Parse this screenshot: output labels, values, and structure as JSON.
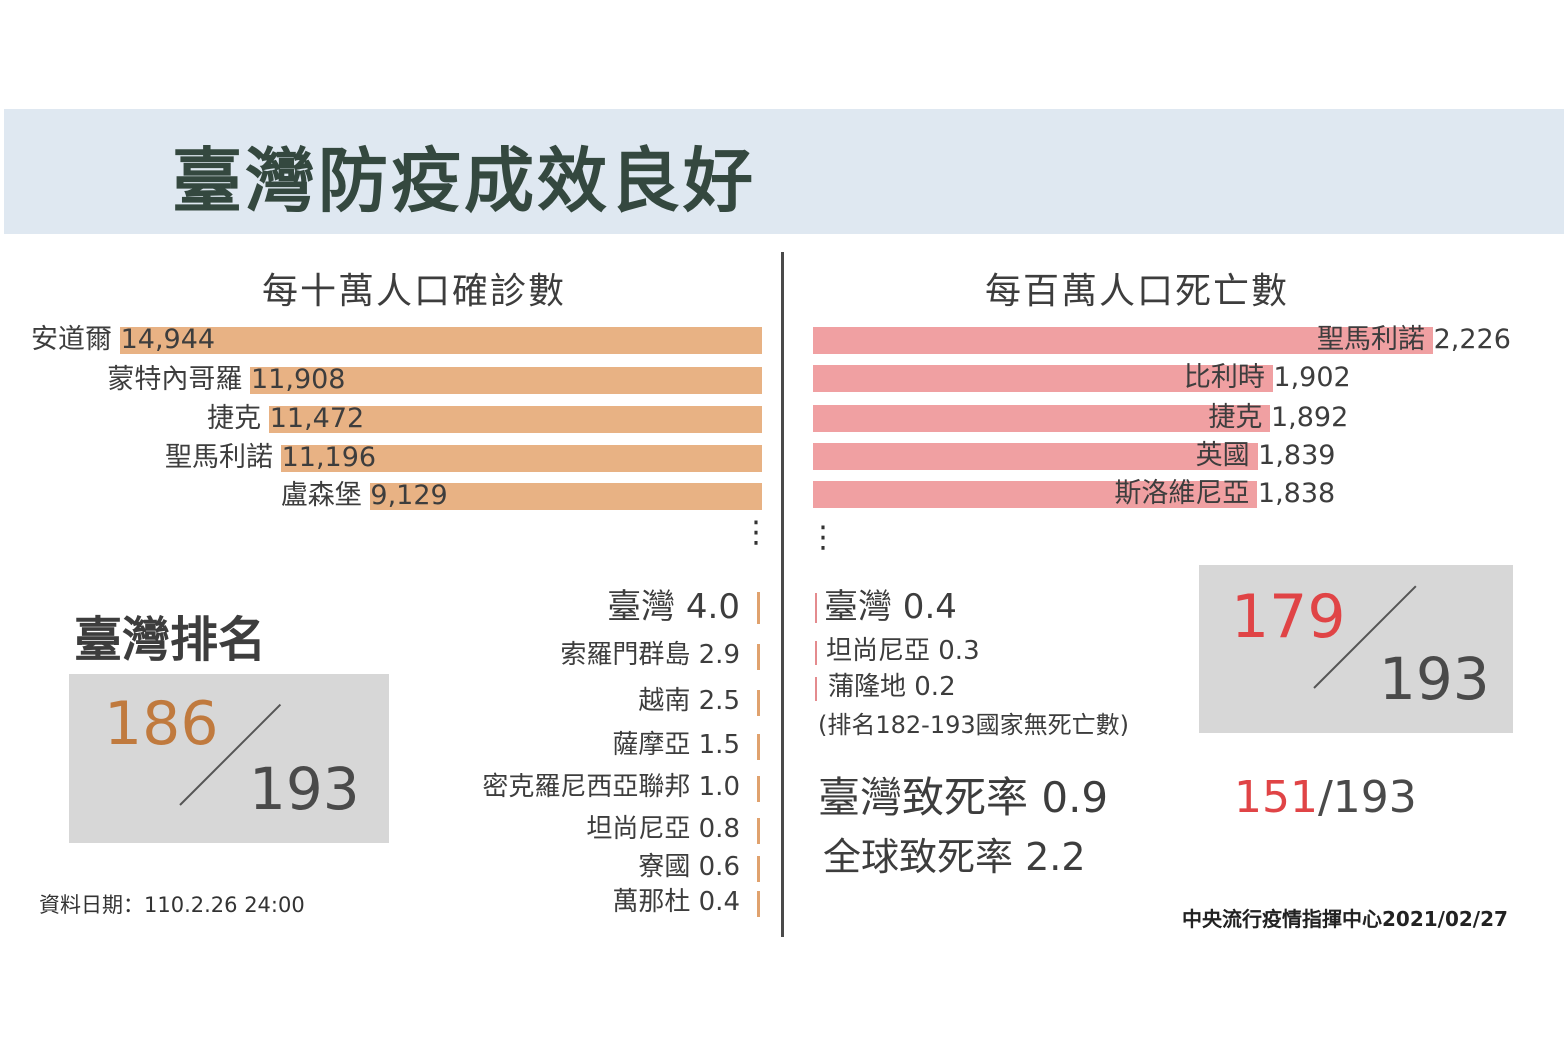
{
  "title": "臺灣防疫成效良好",
  "cases_chart": {
    "title": "每十萬人口確診數",
    "top": [
      {
        "country": "安道爾",
        "value": 14944,
        "label": "14,944"
      },
      {
        "country": "蒙特內哥羅",
        "value": 11908,
        "label": "11,908"
      },
      {
        "country": "捷克",
        "value": 11472,
        "label": "11,472"
      },
      {
        "country": "聖馬利諾",
        "value": 11196,
        "label": "11,196"
      },
      {
        "country": "盧森堡",
        "value": 9129,
        "label": "9,129"
      }
    ],
    "ellipsis": "⋮",
    "bottom": [
      {
        "country": "臺灣",
        "value": 4.0,
        "label": "4.0"
      },
      {
        "country": "索羅門群島",
        "value": 2.9,
        "label": "2.9"
      },
      {
        "country": "越南",
        "value": 2.5,
        "label": "2.5"
      },
      {
        "country": "薩摩亞",
        "value": 1.5,
        "label": "1.5"
      },
      {
        "country": "密克羅尼西亞聯邦",
        "value": 1.0,
        "label": "1.0"
      },
      {
        "country": "坦尚尼亞",
        "value": 0.8,
        "label": "0.8"
      },
      {
        "country": "寮國",
        "value": 0.6,
        "label": "0.6"
      },
      {
        "country": "萬那杜",
        "value": 0.4,
        "label": "0.4"
      }
    ],
    "color": "#e8b284",
    "tick_color": "#e0a26e"
  },
  "deaths_chart": {
    "title": "每百萬人口死亡數",
    "top": [
      {
        "country": "聖馬利諾",
        "value": 2226,
        "label": "2,226"
      },
      {
        "country": "比利時",
        "value": 1902,
        "label": "1,902"
      },
      {
        "country": "捷克",
        "value": 1892,
        "label": "1,892"
      },
      {
        "country": "英國",
        "value": 1839,
        "label": "1,839"
      },
      {
        "country": "斯洛維尼亞",
        "value": 1838,
        "label": "1,838"
      }
    ],
    "ellipsis": "⋮",
    "bottom": [
      {
        "country": "臺灣",
        "value": 0.4,
        "label": "0.4"
      },
      {
        "country": "坦尚尼亞",
        "value": 0.3,
        "label": "0.3"
      },
      {
        "country": "蒲隆地",
        "value": 0.2,
        "label": "0.2"
      }
    ],
    "note": "(排名182-193國家無死亡數)",
    "color": "#f0a0a2",
    "tick_color": "#e48b8e"
  },
  "taiwan_rank": {
    "label": "臺灣排名",
    "cases_rank": "186",
    "total": "193",
    "rank_color": "#c07a3e"
  },
  "deaths_rank": {
    "rank": "179",
    "total": "193",
    "rank_color": "#e04446"
  },
  "fatality": {
    "taiwan_label": "臺灣致死率 0.9",
    "global_label": "全球致死率 2.2",
    "rank": "151",
    "total": "/193",
    "rank_color": "#e04446"
  },
  "data_date": "資料日期：110.2.26 24:00",
  "source": "中央流行疫情指揮中心2021/02/27",
  "chart_data": [
    {
      "type": "bar",
      "title": "每十萬人口確診數",
      "categories": [
        "安道爾",
        "蒙特內哥羅",
        "捷克",
        "聖馬利諾",
        "盧森堡",
        "臺灣",
        "索羅門群島",
        "越南",
        "薩摩亞",
        "密克羅尼西亞聯邦",
        "坦尚尼亞",
        "寮國",
        "萬那杜"
      ],
      "values": [
        14944,
        11908,
        11472,
        11196,
        9129,
        4.0,
        2.9,
        2.5,
        1.5,
        1.0,
        0.8,
        0.6,
        0.4
      ]
    },
    {
      "type": "bar",
      "title": "每百萬人口死亡數",
      "categories": [
        "聖馬利諾",
        "比利時",
        "捷克",
        "英國",
        "斯洛維尼亞",
        "臺灣",
        "坦尚尼亞",
        "蒲隆地"
      ],
      "values": [
        2226,
        1902,
        1892,
        1839,
        1838,
        0.4,
        0.3,
        0.2
      ]
    }
  ]
}
